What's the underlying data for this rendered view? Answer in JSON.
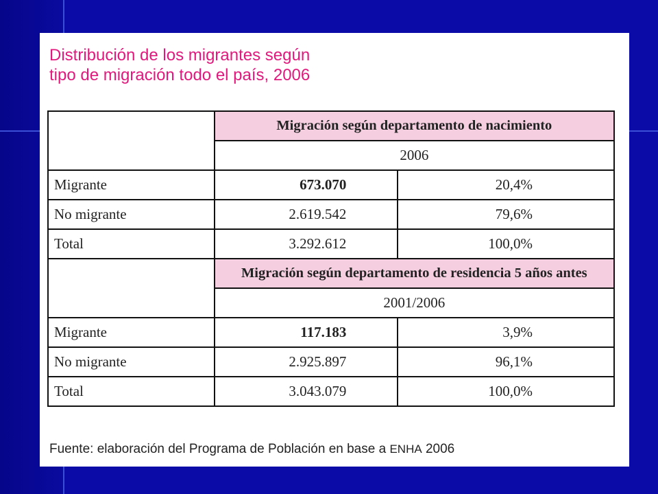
{
  "title": {
    "line1": "Distribución de los migrantes según",
    "line2": "tipo de migración todo el país, 2006"
  },
  "sections": [
    {
      "header": "Migración según departamento de nacimiento",
      "period": "2006",
      "rows": [
        {
          "label": "Migrante",
          "value": "673.070",
          "pct": "20,4%"
        },
        {
          "label": "No migrante",
          "value": "2.619.542",
          "pct": "79,6%"
        },
        {
          "label": "Total",
          "value": "3.292.612",
          "pct": "100,0%"
        }
      ]
    },
    {
      "header": "Migración según departamento de residencia 5 años antes",
      "period": "2001/2006",
      "rows": [
        {
          "label": "Migrante",
          "value": "117.183",
          "pct": "3,9%"
        },
        {
          "label": "No migrante",
          "value": "2.925.897",
          "pct": "96,1%"
        },
        {
          "label": "Total",
          "value": "3.043.079",
          "pct": "100,0%"
        }
      ]
    }
  ],
  "source": {
    "prefix": "Fuente: elaboración del Programa de Población en base a ",
    "acronym": "ENHA",
    "suffix": " 2006"
  },
  "colors": {
    "background": "#0b0ba8",
    "title": "#e0197d",
    "header_fill": "#f5cfe0"
  }
}
